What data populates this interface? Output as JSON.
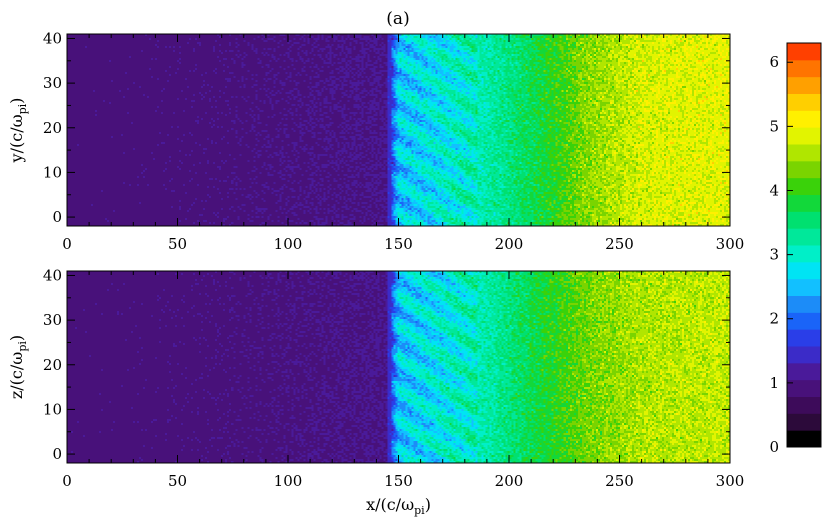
{
  "figure": {
    "panel_label": "(a)"
  },
  "chart_data": [
    {
      "type": "heatmap",
      "title": "(a)",
      "xlabel": "",
      "ylabel": "y/(c/ω_pi)",
      "ylabel_main": "y/(c/ω",
      "ylabel_sub": "pi",
      "ylabel_close": ")",
      "xlim": [
        0,
        300
      ],
      "ylim": [
        -2,
        41
      ],
      "xticks": [
        0,
        50,
        100,
        150,
        200,
        250,
        300
      ],
      "yticks": [
        0,
        10,
        20,
        30,
        40
      ],
      "shock_x": 146,
      "profile": [
        {
          "x": 0,
          "value": 0.95
        },
        {
          "x": 145,
          "value": 1.05
        },
        {
          "x": 147,
          "value": 1.8
        },
        {
          "x": 150,
          "value": 2.6
        },
        {
          "x": 165,
          "value": 2.8
        },
        {
          "x": 190,
          "value": 3.2
        },
        {
          "x": 215,
          "value": 3.8
        },
        {
          "x": 235,
          "value": 4.4
        },
        {
          "x": 260,
          "value": 4.8
        },
        {
          "x": 300,
          "value": 4.9
        }
      ]
    },
    {
      "type": "heatmap",
      "xlabel": "x/(c/ω_pi)",
      "xlabel_main": "x/(c/ω",
      "xlabel_sub": "pi",
      "xlabel_close": ")",
      "ylabel": "z/(c/ω_pi)",
      "ylabel_main": "z/(c/ω",
      "ylabel_sub": "pi",
      "ylabel_close": ")",
      "xlim": [
        0,
        300
      ],
      "ylim": [
        -2,
        41
      ],
      "xticks": [
        0,
        50,
        100,
        150,
        200,
        250,
        300
      ],
      "yticks": [
        0,
        10,
        20,
        30,
        40
      ],
      "shock_x": 146,
      "profile": [
        {
          "x": 0,
          "value": 0.95
        },
        {
          "x": 145,
          "value": 1.05
        },
        {
          "x": 147,
          "value": 1.8
        },
        {
          "x": 150,
          "value": 2.6
        },
        {
          "x": 165,
          "value": 2.8
        },
        {
          "x": 190,
          "value": 3.2
        },
        {
          "x": 210,
          "value": 3.7
        },
        {
          "x": 235,
          "value": 4.3
        },
        {
          "x": 260,
          "value": 4.6
        },
        {
          "x": 300,
          "value": 4.7
        }
      ]
    }
  ],
  "colorbar": {
    "min": 0,
    "max": 6.3,
    "ticks": [
      0,
      1,
      2,
      3,
      4,
      5,
      6
    ],
    "colors": [
      "#000000",
      "#2c0a3a",
      "#3d0b5a",
      "#48117a",
      "#4a1a9a",
      "#3b2bc8",
      "#2a3ee8",
      "#1a64f8",
      "#1c8cf8",
      "#12c0ff",
      "#00e4f4",
      "#00efc8",
      "#00e89a",
      "#00e070",
      "#12d83a",
      "#3ad20a",
      "#7ad400",
      "#b0e600",
      "#e2f400",
      "#fff000",
      "#ffcf00",
      "#ffa000",
      "#ff7400",
      "#ff4000"
    ]
  }
}
